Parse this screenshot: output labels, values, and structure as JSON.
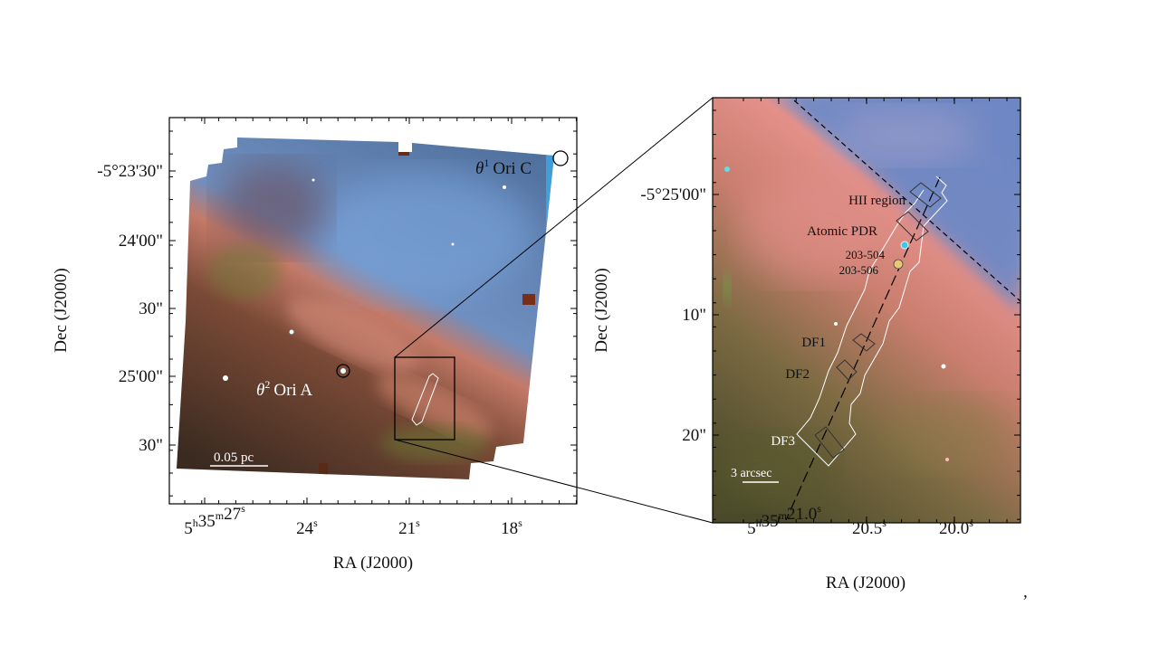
{
  "left_panel": {
    "xlabel": "RA (J2000)",
    "ylabel": "Dec (J2000)",
    "x_ticks": [
      [
        {
          "t": "5"
        },
        {
          "sup": "h"
        },
        {
          "t": "35"
        },
        {
          "sup": "m"
        },
        {
          "t": "27"
        },
        {
          "sup": "s"
        }
      ],
      [
        {
          "t": "24"
        },
        {
          "sup": "s"
        }
      ],
      [
        {
          "t": "21"
        },
        {
          "sup": "s"
        }
      ],
      [
        {
          "t": "18"
        },
        {
          "sup": "s"
        }
      ]
    ],
    "y_ticks": [
      "-5°23'30\"",
      "24'00\"",
      "30\"",
      "25'00\"",
      "30\""
    ],
    "annotations": {
      "theta1_symbol": "θ",
      "theta1_sup": "1",
      "theta1_name": "Ori C",
      "theta2_symbol": "θ",
      "theta2_sup": "2",
      "theta2_name": "Ori A",
      "scalebar": "0.05 pc"
    }
  },
  "right_panel": {
    "xlabel": "RA (J2000)",
    "ylabel": "Dec (J2000)",
    "x_ticks": [
      [
        {
          "t": "5"
        },
        {
          "sup": "h"
        },
        {
          "t": "35"
        },
        {
          "sup": "m"
        },
        {
          "t": "21.0"
        },
        {
          "sup": "s"
        }
      ],
      [
        {
          "t": "20.5"
        },
        {
          "sup": "s"
        }
      ],
      [
        {
          "t": "20.0"
        },
        {
          "sup": "s"
        }
      ]
    ],
    "y_ticks": [
      "-5°25'00\"",
      "10\"",
      "20\""
    ],
    "annotations": {
      "hii": "HII region",
      "atomic": "Atomic PDR",
      "p1": "203-504",
      "p2": "203-506",
      "df1": "DF1",
      "df2": "DF2",
      "df3": "DF3",
      "scalebar": "3 arcsec"
    }
  },
  "trailing_mark": ",",
  "colors": {
    "hii_blue": "#6f93c8",
    "pdr_red": "#e08a78",
    "molecular_green": "#6f7a3a",
    "background": "#ffffff"
  }
}
